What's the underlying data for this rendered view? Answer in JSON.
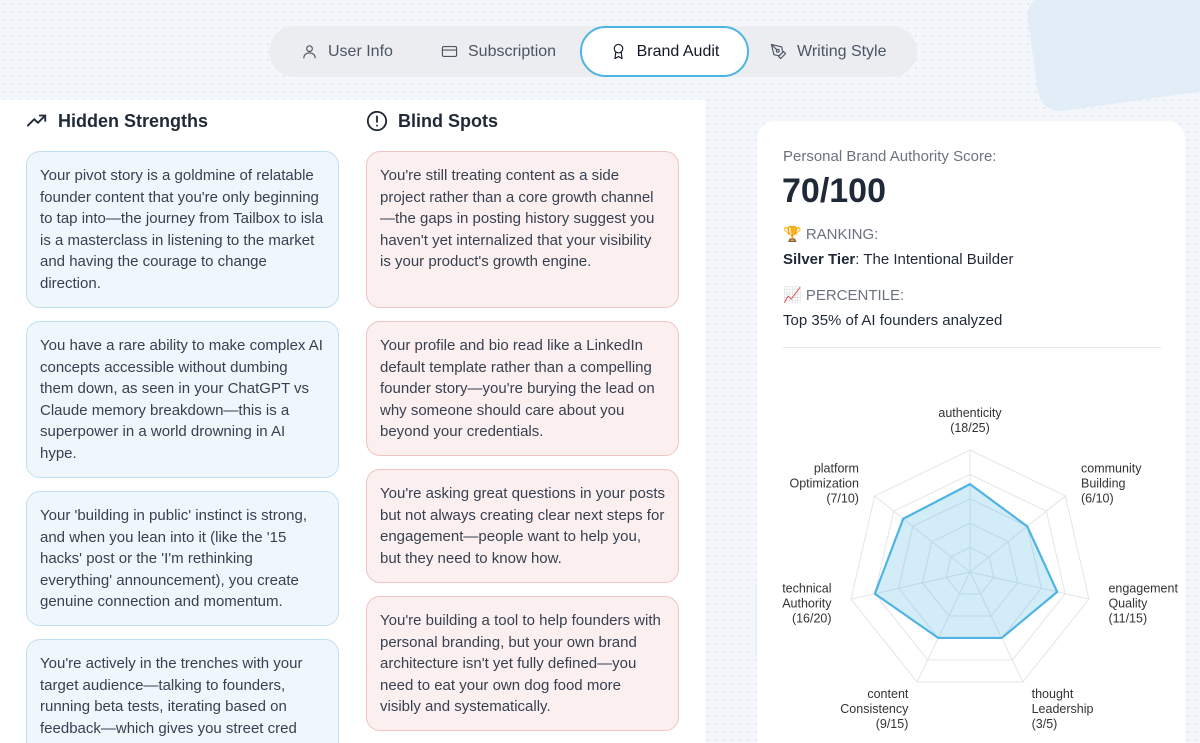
{
  "tabs": [
    {
      "label": "User Info",
      "icon": "user-icon"
    },
    {
      "label": "Subscription",
      "icon": "credit-card-icon"
    },
    {
      "label": "Brand Audit",
      "icon": "award-icon",
      "active": true
    },
    {
      "label": "Writing Style",
      "icon": "pen-tool-icon"
    }
  ],
  "strengths": {
    "title": "Hidden Strengths",
    "icon": "trending-up-icon",
    "items": [
      "Your pivot story is a goldmine of relatable founder content that you're only beginning to tap into—the journey from Tailbox to isla is a masterclass in listening to the market and having the courage to change direction.",
      "You have a rare ability to make complex AI concepts accessible without dumbing them down, as seen in your ChatGPT vs Claude memory breakdown—this is a superpower in a world drowning in AI hype.",
      "Your 'building in public' instinct is strong, and when you lean into it (like the '15 hacks' post or the 'I'm rethinking everything' announcement), you create genuine connection and momentum.",
      "You're actively in the trenches with your target audience—talking to founders, running beta tests, iterating based on feedback—which gives you street cred"
    ]
  },
  "blind_spots": {
    "title": "Blind Spots",
    "icon": "alert-circle-icon",
    "items": [
      "You're still treating content as a side project rather than a core growth channel—the gaps in posting history suggest you haven't yet internalized that your visibility is your product's growth engine.",
      "Your profile and bio read like a LinkedIn default template rather than a compelling founder story—you're burying the lead on why someone should care about you beyond your credentials.",
      "You're asking great questions in your posts but not always creating clear next steps for engagement—people want to help you, but they need to know how.",
      "You're building a tool to help founders with personal branding, but your own brand architecture isn't yet fully defined—you need to eat your own dog food more visibly and systematically."
    ]
  },
  "score": {
    "label": "Personal Brand Authority Score:",
    "value": "70/100",
    "ranking_label": "🏆 RANKING:",
    "ranking_tier": "Silver Tier",
    "ranking_name": ": The Intentional Builder",
    "percentile_label": "📈 PERCENTILE:",
    "percentile_value": "Top 35% of AI founders analyzed"
  },
  "chart_data": {
    "type": "radar",
    "accent_color": "#4db4e3",
    "axes": [
      {
        "lines": [
          "authenticity",
          "(18/25)"
        ],
        "value": 18,
        "max": 25
      },
      {
        "lines": [
          "community",
          "Building",
          "(6/10)"
        ],
        "value": 6,
        "max": 10
      },
      {
        "lines": [
          "engagement",
          "Quality",
          "(11/15)"
        ],
        "value": 11,
        "max": 15
      },
      {
        "lines": [
          "thought",
          "Leadership",
          "(3/5)"
        ],
        "value": 3,
        "max": 5
      },
      {
        "lines": [
          "content",
          "Consistency",
          "(9/15)"
        ],
        "value": 9,
        "max": 15
      },
      {
        "lines": [
          "technical",
          "Authority",
          "(16/20)"
        ],
        "value": 16,
        "max": 20
      },
      {
        "lines": [
          "platform",
          "Optimization",
          "(7/10)"
        ],
        "value": 7,
        "max": 10
      }
    ]
  }
}
